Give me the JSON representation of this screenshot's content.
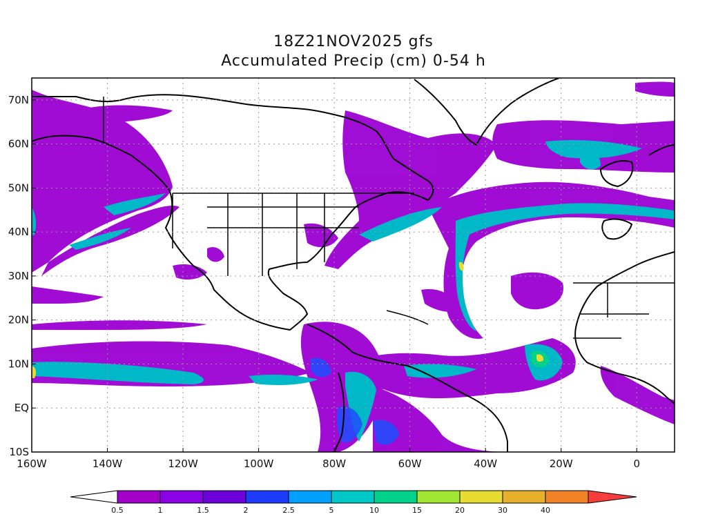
{
  "title_line1": "18Z21NOV2025 gfs",
  "title_line2": "Accumulated Precip (cm) 0-54 h",
  "x_ticks": [
    "160W",
    "140W",
    "120W",
    "100W",
    "80W",
    "60W",
    "40W",
    "20W",
    "0"
  ],
  "y_ticks": [
    "70N",
    "60N",
    "50N",
    "40N",
    "30N",
    "20N",
    "10N",
    "EQ",
    "10S"
  ],
  "colorbar": {
    "labels": [
      "0.5",
      "1",
      "1.5",
      "2",
      "2.5",
      "5",
      "10",
      "15",
      "20",
      "30",
      "40"
    ],
    "colors": [
      "#ffffff",
      "#a000c8",
      "#8c00e6",
      "#6e00dc",
      "#1e3cff",
      "#00a0ff",
      "#00c8c8",
      "#00d28c",
      "#a0e632",
      "#e6dc32",
      "#e6af2d",
      "#f08228",
      "#fa3c3c"
    ]
  },
  "map": {
    "lon_range": [
      -160,
      10
    ],
    "lat_range": [
      -10,
      75
    ],
    "gridlines": "dotted"
  }
}
